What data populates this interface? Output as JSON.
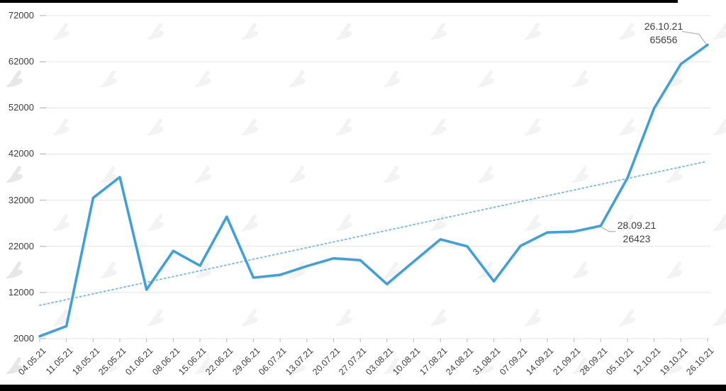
{
  "chart_data": {
    "type": "line",
    "title": "",
    "xlabel": "",
    "ylabel": "",
    "categories": [
      "04.05.21",
      "11.05.21",
      "18.05.21",
      "25.05.21",
      "01.06.21",
      "08.06.21",
      "15.06.21",
      "22.06.21",
      "29.06.21",
      "06.07.21",
      "13.07.21",
      "20.07.21",
      "27.07.21",
      "03.08.21",
      "10.08.21",
      "17.08.21",
      "24.08.21",
      "31.08.21",
      "07.09.21",
      "14.09.21",
      "21.09.21",
      "28.09.21",
      "05.10.21",
      "12.10.21",
      "19.10.21",
      "26.10.21"
    ],
    "series": [
      {
        "name": "value",
        "values": [
          2500,
          4700,
          32500,
          37000,
          12600,
          21000,
          17800,
          28400,
          15200,
          15800,
          17700,
          19400,
          19000,
          13800,
          18700,
          23500,
          22000,
          14400,
          22100,
          25000,
          25200,
          26423,
          36800,
          51900,
          61500,
          65656
        ]
      }
    ],
    "trendline": {
      "style": "dotted",
      "start_value": 9200,
      "end_value": 40400
    },
    "ylim": [
      2000,
      72000
    ],
    "yticks": [
      2000,
      12000,
      22000,
      32000,
      42000,
      52000,
      62000,
      72000
    ],
    "grid": true,
    "legend": "none",
    "annotations": [
      {
        "date": "26.10.21",
        "value": "65656",
        "index": 25
      },
      {
        "date": "28.09.21",
        "value": "26423",
        "index": 21
      }
    ]
  },
  "colors": {
    "line": "#41a0dc",
    "trendline": "#85bbe7",
    "grid": "#e4e4e4",
    "axis_tick": "#b9b9b9",
    "label_text": "#3d3d3d",
    "annotation_text": "#3f3f3f",
    "callout": "#b0b0b0",
    "watermark": "#f3f3f3",
    "frame_bar": "#000000"
  },
  "icons": {
    "watermark": "forklog-logo-watermark-icon"
  }
}
